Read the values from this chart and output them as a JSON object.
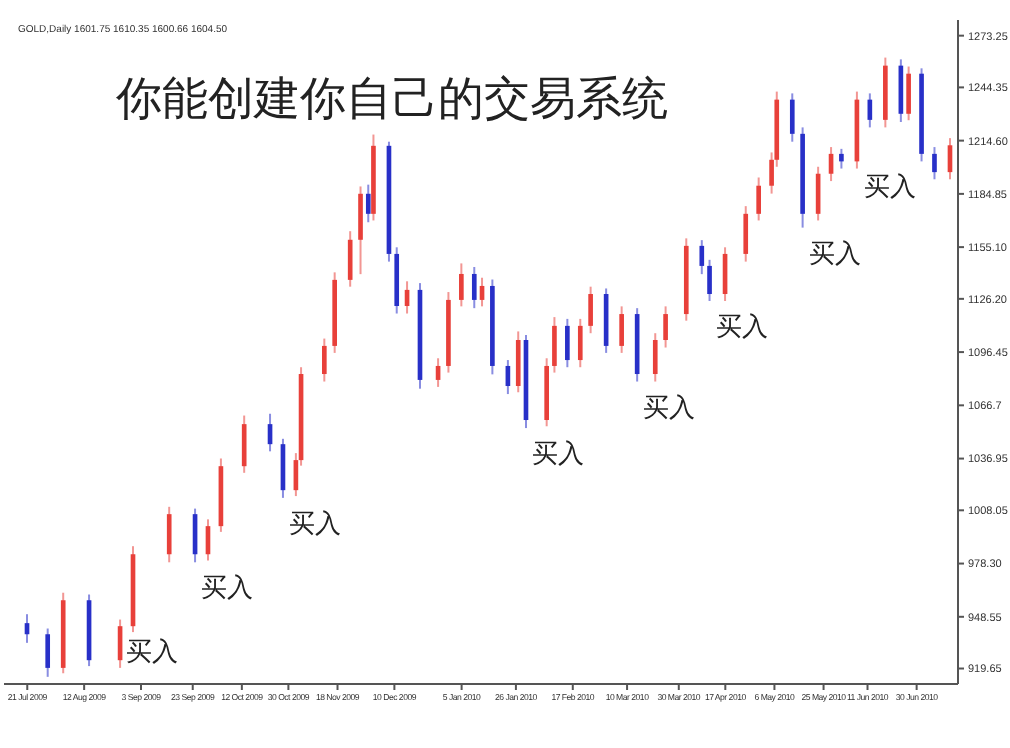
{
  "chart_data": {
    "type": "candlestick",
    "title": "你能创建你自己的交易系统",
    "subtitle": "GOLD,Daily 1601.75 1610.35 1600.66 1604.50",
    "x": [
      "2009-07-21",
      "2009-07-29",
      "2009-08-04",
      "2009-08-14",
      "2009-08-26",
      "2009-08-31",
      "2009-09-14",
      "2009-09-24",
      "2009-09-29",
      "2009-10-04",
      "2009-10-13",
      "2009-10-23",
      "2009-10-28",
      "2009-11-02",
      "2009-11-04",
      "2009-11-13",
      "2009-11-17",
      "2009-11-23",
      "2009-11-27",
      "2009-11-30",
      "2009-12-02",
      "2009-12-08",
      "2009-12-11",
      "2009-12-15",
      "2009-12-20",
      "2009-12-27",
      "2009-12-31",
      "2010-01-05",
      "2010-01-10",
      "2010-01-13",
      "2010-01-17",
      "2010-01-23",
      "2010-01-27",
      "2010-01-30",
      "2010-02-07",
      "2010-02-10",
      "2010-02-15",
      "2010-02-20",
      "2010-02-24",
      "2010-03-02",
      "2010-03-08",
      "2010-03-14",
      "2010-03-21",
      "2010-03-25",
      "2010-04-02",
      "2010-04-08",
      "2010-04-11",
      "2010-04-17",
      "2010-04-25",
      "2010-04-30",
      "2010-05-05",
      "2010-05-07",
      "2010-05-13",
      "2010-05-17",
      "2010-05-23",
      "2010-05-28",
      "2010-06-01",
      "2010-06-07",
      "2010-06-12",
      "2010-06-18",
      "2010-06-24",
      "2010-06-27",
      "2010-07-02",
      "2010-07-07",
      "2010-07-13"
    ],
    "ohlc": [
      [
        945,
        950,
        934,
        938.8
      ],
      [
        938.8,
        942,
        915,
        920
      ],
      [
        920,
        962,
        917,
        957.8
      ],
      [
        957.8,
        961,
        921,
        924.3
      ],
      [
        924.3,
        947,
        920,
        943.3
      ],
      [
        943.3,
        988,
        940,
        983.5
      ],
      [
        983.5,
        1010,
        979,
        1005.9
      ],
      [
        1005.9,
        1009,
        979,
        983.5
      ],
      [
        983.5,
        1003,
        980,
        999.2
      ],
      [
        999.2,
        1037,
        996,
        1032.7
      ],
      [
        1032.7,
        1061,
        1029,
        1056.2
      ],
      [
        1056.2,
        1062,
        1041,
        1045
      ],
      [
        1045,
        1048,
        1015,
        1019.3
      ],
      [
        1019.3,
        1040,
        1016,
        1036.1
      ],
      [
        1036.1,
        1088,
        1033,
        1084.2
      ],
      [
        1084.2,
        1104,
        1080,
        1099.9
      ],
      [
        1099.9,
        1141,
        1096,
        1136.8
      ],
      [
        1136.8,
        1164,
        1133,
        1159.2
      ],
      [
        1159.2,
        1189,
        1140,
        1184.9
      ],
      [
        1184.9,
        1190,
        1169,
        1173.7
      ],
      [
        1173.7,
        1218,
        1170,
        1211.7
      ],
      [
        1211.7,
        1214,
        1147,
        1151.3
      ],
      [
        1151.3,
        1155,
        1118,
        1122.2
      ],
      [
        1122.2,
        1136,
        1118,
        1131.2
      ],
      [
        1131.2,
        1135,
        1076,
        1080.9
      ],
      [
        1080.9,
        1093,
        1077,
        1088.7
      ],
      [
        1088.7,
        1130,
        1085,
        1125.6
      ],
      [
        1125.6,
        1146,
        1122,
        1140.1
      ],
      [
        1140.1,
        1144,
        1121,
        1125.6
      ],
      [
        1125.6,
        1138,
        1122,
        1133.4
      ],
      [
        1133.4,
        1137,
        1084,
        1088.7
      ],
      [
        1088.7,
        1092,
        1073,
        1077.5
      ],
      [
        1077.5,
        1108,
        1074,
        1103.2
      ],
      [
        1103.2,
        1106,
        1054,
        1058.5
      ],
      [
        1058.5,
        1093,
        1055,
        1088.7
      ],
      [
        1088.7,
        1116,
        1085,
        1111.1
      ],
      [
        1111.1,
        1115,
        1088,
        1092
      ],
      [
        1092,
        1115,
        1088,
        1111.1
      ],
      [
        1111.1,
        1133,
        1107,
        1128.9
      ],
      [
        1128.9,
        1132,
        1096,
        1099.9
      ],
      [
        1099.9,
        1122,
        1096,
        1117.7
      ],
      [
        1117.7,
        1121,
        1080,
        1084.2
      ],
      [
        1084.2,
        1107,
        1080,
        1103.2
      ],
      [
        1103.2,
        1122,
        1099,
        1117.7
      ],
      [
        1117.7,
        1160,
        1114,
        1155.8
      ],
      [
        1155.8,
        1159,
        1140,
        1144.6
      ],
      [
        1144.6,
        1148,
        1125,
        1128.9
      ],
      [
        1128.9,
        1155,
        1125,
        1151.3
      ],
      [
        1151.3,
        1178,
        1147,
        1173.7
      ],
      [
        1173.7,
        1194,
        1170,
        1189.4
      ],
      [
        1189.4,
        1208,
        1185,
        1203.9
      ],
      [
        1203.9,
        1242,
        1200,
        1237.5
      ],
      [
        1237.5,
        1241,
        1214,
        1218.4
      ],
      [
        1218.4,
        1222,
        1166,
        1173.7
      ],
      [
        1173.7,
        1200,
        1170,
        1196.1
      ],
      [
        1196.1,
        1211,
        1192,
        1207.2
      ],
      [
        1207.2,
        1210,
        1199,
        1203
      ],
      [
        1203,
        1242,
        1199,
        1237.5
      ],
      [
        1237.5,
        1241,
        1222,
        1226.2
      ],
      [
        1226.2,
        1261,
        1222,
        1256.5
      ],
      [
        1256.5,
        1260,
        1225,
        1229.6
      ],
      [
        1229.6,
        1256,
        1226,
        1252
      ],
      [
        1252,
        1255,
        1203,
        1207.2
      ],
      [
        1207.2,
        1211,
        1193,
        1197
      ],
      [
        1197,
        1216,
        1193,
        1212
      ]
    ],
    "colors": [
      "#2830c8",
      "#2830c8",
      "#e8403a",
      "#2830c8",
      "#e8403a",
      "#e8403a",
      "#e8403a",
      "#2830c8",
      "#e8403a",
      "#e8403a",
      "#e8403a",
      "#2830c8",
      "#2830c8",
      "#e8403a",
      "#e8403a",
      "#e8403a",
      "#e8403a",
      "#e8403a",
      "#e8403a",
      "#2830c8",
      "#e8403a",
      "#2830c8",
      "#2830c8",
      "#e8403a",
      "#2830c8",
      "#e8403a",
      "#e8403a",
      "#e8403a",
      "#2830c8",
      "#e8403a",
      "#2830c8",
      "#2830c8",
      "#e8403a",
      "#2830c8",
      "#e8403a",
      "#e8403a",
      "#2830c8",
      "#e8403a",
      "#e8403a",
      "#2830c8",
      "#e8403a",
      "#2830c8",
      "#e8403a",
      "#e8403a",
      "#e8403a",
      "#2830c8",
      "#2830c8",
      "#e8403a",
      "#e8403a",
      "#e8403a",
      "#e8403a",
      "#e8403a",
      "#2830c8",
      "#2830c8",
      "#e8403a",
      "#e8403a",
      "#2830c8",
      "#e8403a",
      "#2830c8",
      "#e8403a",
      "#2830c8",
      "#e8403a",
      "#2830c8",
      "#2830c8",
      "#e8403a"
    ],
    "xlim": [
      "2009-07-12",
      "2010-07-16"
    ],
    "xticks": [
      {
        "value": "2009-07-21",
        "label": "21 Jul 2009"
      },
      {
        "value": "2009-08-12",
        "label": "12 Aug 2009"
      },
      {
        "value": "2009-09-03",
        "label": "3 Sep 2009"
      },
      {
        "value": "2009-09-23",
        "label": "23 Sep 2009"
      },
      {
        "value": "2009-10-12",
        "label": "12 Oct 2009"
      },
      {
        "value": "2009-10-30",
        "label": "30 Oct 2009"
      },
      {
        "value": "2009-11-18",
        "label": "18 Nov 2009"
      },
      {
        "value": "2009-12-10",
        "label": "10 Dec 2009"
      },
      {
        "value": "2010-01-05",
        "label": "5 Jan 2010"
      },
      {
        "value": "2010-01-26",
        "label": "26 Jan 2010"
      },
      {
        "value": "2010-02-17",
        "label": "17 Feb 2010"
      },
      {
        "value": "2010-03-10",
        "label": "10 Mar 2010"
      },
      {
        "value": "2010-03-30",
        "label": "30 Mar 2010"
      },
      {
        "value": "2010-04-17",
        "label": "17 Apr 2010"
      },
      {
        "value": "2010-05-06",
        "label": "6 May 2010"
      },
      {
        "value": "2010-05-25",
        "label": "25 May 2010"
      },
      {
        "value": "2010-06-11",
        "label": "11 Jun 2010"
      },
      {
        "value": "2010-06-30",
        "label": "30 Jun 2010"
      }
    ],
    "ylim": [
      911,
      1282
    ],
    "yticks": [
      919.65,
      948.55,
      {
        "value": 978.3,
        "label": "978.30"
      },
      1008.05,
      1036.95,
      1066.7,
      1096.45,
      {
        "value": 1126.2,
        "label": "1126.20"
      },
      {
        "value": 1155.1,
        "label": "1155.10"
      },
      1184.85,
      {
        "value": 1214.6,
        "label": "1214.60"
      },
      1244.35,
      1273.25
    ],
    "annotations": [
      {
        "text": "买入",
        "x": "2009-08-26",
        "y": 943.3
      },
      {
        "text": "买入",
        "x": "2009-09-24",
        "y": 979
      },
      {
        "text": "买入",
        "x": "2009-10-28",
        "y": 1015
      },
      {
        "text": "买入",
        "x": "2010-01-30",
        "y": 1054
      },
      {
        "text": "买入",
        "x": "2010-03-14",
        "y": 1080
      },
      {
        "text": "买入",
        "x": "2010-04-11",
        "y": 1125
      },
      {
        "text": "买入",
        "x": "2010-05-17",
        "y": 1166
      },
      {
        "text": "买入",
        "x": "2010-07-02",
        "y": 1203
      }
    ],
    "grid": false,
    "legend": false
  }
}
